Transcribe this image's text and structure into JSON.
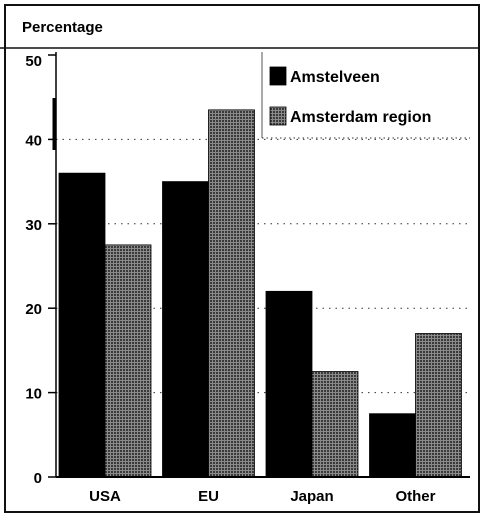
{
  "chart_data": {
    "type": "bar",
    "ylabel": "Percentage",
    "categories": [
      "USA",
      "EU",
      "Japan",
      "Other"
    ],
    "series": [
      {
        "name": "Amstelveen",
        "values": [
          36,
          35,
          22,
          7.5
        ],
        "color": "#000000",
        "pattern": "solid"
      },
      {
        "name": "Amsterdam region",
        "values": [
          27.5,
          43.5,
          12.5,
          17
        ],
        "color": "#555555",
        "pattern": "crosshatch-grid"
      }
    ],
    "ylim": [
      0,
      50
    ],
    "yticks": [
      0,
      10,
      20,
      30,
      40,
      50
    ],
    "grid": "dotted horizontal",
    "legend": "top-right"
  }
}
